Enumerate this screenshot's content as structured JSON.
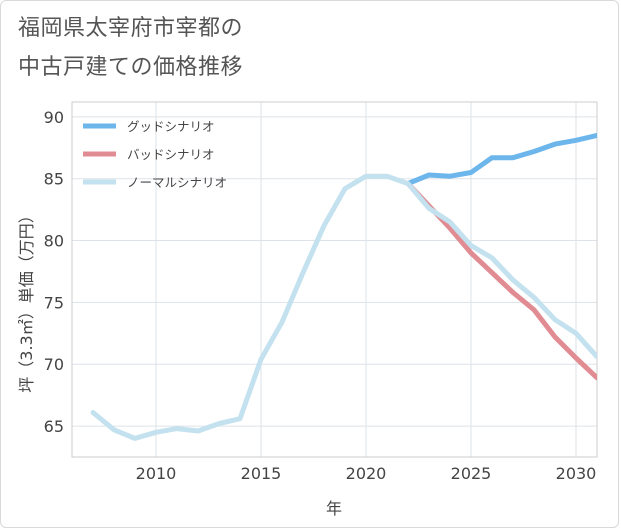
{
  "title": {
    "line1": "福岡県太宰府市宰都の",
    "line2": "中古戸建ての価格推移"
  },
  "chart_data": {
    "type": "line",
    "xlabel": "年",
    "ylabel": "坪（3.3㎡）単価（万円）",
    "xlim": [
      2006,
      2031
    ],
    "ylim": [
      62.5,
      91.2
    ],
    "xticks": [
      2010,
      2015,
      2020,
      2025,
      2030
    ],
    "yticks": [
      65,
      70,
      75,
      80,
      85,
      90
    ],
    "grid": true,
    "legend_position": "top-left",
    "series": [
      {
        "name": "グッドシナリオ",
        "color": "#6cb6ec",
        "x": [
          2022,
          2023,
          2024,
          2025,
          2026,
          2027,
          2028,
          2029,
          2030,
          2031
        ],
        "y": [
          84.6,
          85.3,
          85.2,
          85.5,
          86.7,
          86.7,
          87.2,
          87.8,
          88.1,
          88.5
        ]
      },
      {
        "name": "バッドシナリオ",
        "color": "#e08c92",
        "x": [
          2022,
          2023,
          2024,
          2025,
          2026,
          2027,
          2028,
          2029,
          2030,
          2031
        ],
        "y": [
          84.6,
          82.8,
          81.0,
          79.0,
          77.4,
          75.8,
          74.4,
          72.2,
          70.5,
          68.9
        ]
      },
      {
        "name": "ノーマルシナリオ",
        "color": "#c3e1ee",
        "x": [
          2007,
          2008,
          2009,
          2010,
          2011,
          2012,
          2013,
          2014,
          2015,
          2016,
          2017,
          2018,
          2019,
          2020,
          2021,
          2022,
          2023,
          2024,
          2025,
          2026,
          2027,
          2028,
          2029,
          2030,
          2031
        ],
        "y": [
          66.1,
          64.7,
          64.0,
          64.5,
          64.8,
          64.6,
          65.2,
          65.6,
          70.4,
          73.4,
          77.4,
          81.2,
          84.2,
          85.2,
          85.2,
          84.6,
          82.6,
          81.5,
          79.6,
          78.6,
          76.8,
          75.4,
          73.6,
          72.5,
          70.6
        ]
      }
    ]
  }
}
